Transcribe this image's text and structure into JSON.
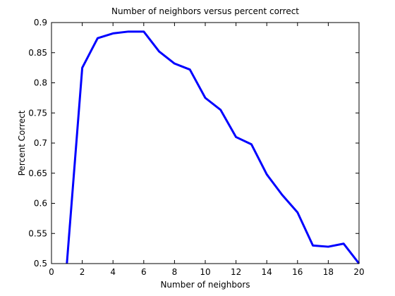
{
  "chart_data": {
    "type": "line",
    "title": "Number of neighbors versus percent correct",
    "xlabel": "Number of neighbors",
    "ylabel": "Percent Correct",
    "xlim": [
      0,
      20
    ],
    "ylim": [
      0.5,
      0.9
    ],
    "xticks": [
      0,
      2,
      4,
      6,
      8,
      10,
      12,
      14,
      16,
      18,
      20
    ],
    "yticks": [
      0.5,
      0.55,
      0.6,
      0.65,
      0.7,
      0.75,
      0.8,
      0.85,
      0.9
    ],
    "grid": false,
    "series": [
      {
        "color": "#0000ff",
        "x": [
          1,
          2,
          3,
          4,
          5,
          6,
          7,
          8,
          9,
          10,
          11,
          12,
          13,
          14,
          15,
          16,
          17,
          18,
          19,
          20
        ],
        "values": [
          0.5,
          0.825,
          0.874,
          0.882,
          0.885,
          0.885,
          0.852,
          0.832,
          0.822,
          0.775,
          0.755,
          0.71,
          0.698,
          0.648,
          0.614,
          0.585,
          0.53,
          0.528,
          0.533,
          0.5
        ]
      }
    ]
  }
}
